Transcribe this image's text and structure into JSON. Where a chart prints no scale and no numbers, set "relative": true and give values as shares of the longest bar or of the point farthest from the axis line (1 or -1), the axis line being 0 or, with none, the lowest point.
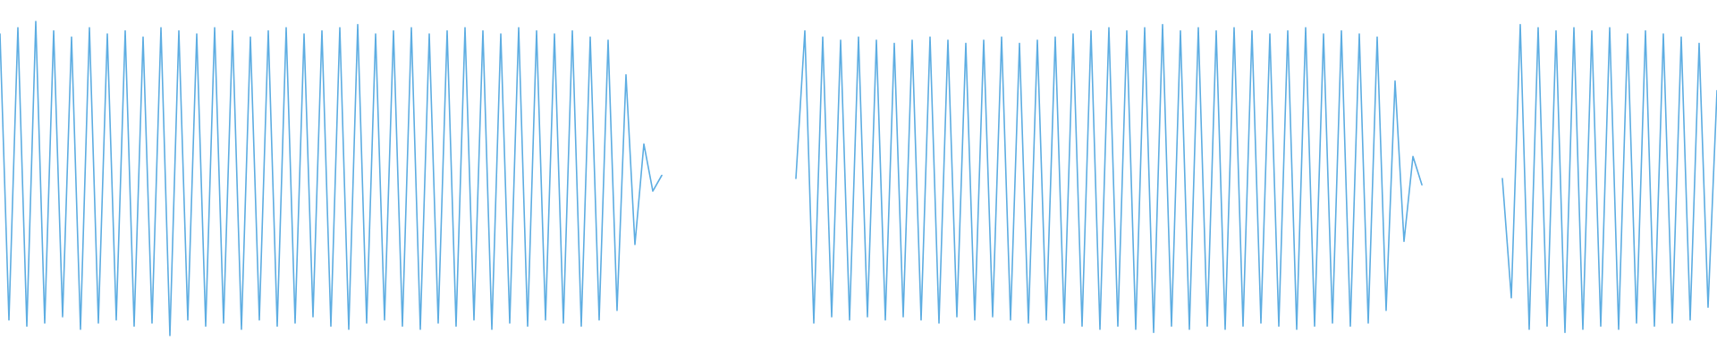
{
  "chart_data": {
    "type": "line",
    "relative": true,
    "categories": [
      null,
      null,
      null,
      null,
      null,
      null,
      null,
      null,
      null,
      null,
      null,
      null,
      null,
      null,
      null,
      null,
      null,
      null,
      null,
      null,
      null,
      null,
      null,
      null,
      null,
      null,
      null,
      null,
      null,
      null,
      null,
      null,
      null,
      null,
      null,
      null,
      null,
      null,
      null,
      null,
      null,
      null,
      null,
      null,
      null,
      null,
      null,
      null,
      null,
      null,
      null,
      null,
      null,
      null,
      null,
      null,
      null,
      null,
      null,
      null,
      null,
      null,
      null,
      null,
      null,
      null,
      null,
      null,
      null,
      null,
      null,
      null,
      null,
      null,
      null,
      null,
      null,
      null,
      null,
      null,
      null,
      null,
      null,
      null,
      null,
      null,
      null,
      null,
      null,
      null,
      null,
      null,
      null,
      null,
      null,
      null,
      null,
      null,
      null,
      null,
      null,
      null,
      null,
      null,
      null,
      null,
      null,
      null,
      null,
      null,
      null,
      null,
      null,
      null,
      null,
      null,
      null,
      null,
      null,
      null,
      null,
      null,
      null,
      null,
      null,
      null,
      null,
      null,
      null,
      null,
      null,
      null,
      null,
      null,
      null,
      null,
      null,
      null,
      null,
      null,
      null,
      null,
      null,
      null,
      null,
      null,
      null,
      null,
      null,
      null,
      null,
      null,
      null,
      null,
      null,
      null,
      null,
      null,
      null,
      null,
      null,
      null,
      null,
      null,
      null,
      null,
      null,
      null,
      null,
      null,
      null,
      null,
      null,
      null,
      null,
      null,
      null,
      null,
      null,
      null,
      null,
      null,
      null,
      null,
      null,
      null,
      null,
      null,
      null,
      null,
      null,
      null,
      null
    ],
    "series": [
      {
        "color": "#5dade2",
        "values": [
          0.96,
          0.05,
          0.98,
          0.03,
          1.0,
          0.04,
          0.97,
          0.06,
          0.95,
          0.02,
          0.98,
          0.04,
          0.96,
          0.05,
          0.97,
          0.03,
          0.95,
          0.04,
          0.98,
          0.0,
          0.97,
          0.05,
          0.96,
          0.03,
          0.98,
          0.04,
          0.97,
          0.02,
          0.95,
          0.05,
          0.97,
          0.03,
          0.98,
          0.04,
          0.96,
          0.06,
          0.97,
          0.03,
          0.98,
          0.02,
          0.99,
          0.04,
          0.96,
          0.05,
          0.97,
          0.03,
          0.98,
          0.02,
          0.96,
          0.04,
          0.97,
          0.03,
          0.98,
          0.05,
          0.97,
          0.02,
          0.96,
          0.04,
          0.98,
          0.03,
          0.97,
          0.05,
          0.96,
          0.04,
          0.97,
          0.03,
          0.95,
          0.05,
          0.94,
          0.08,
          0.83,
          0.29,
          0.61,
          0.46,
          0.51,
          null,
          null,
          null,
          null,
          null,
          null,
          null,
          null,
          null,
          null,
          null,
          null,
          null,
          null,
          null,
          null,
          null,
          null,
          null,
          null,
          null,
          null,
          null,
          null,
          null,
          null,
          null,
          null,
          null,
          null,
          null,
          null,
          null,
          null,
          null,
          null,
          null,
          null,
          null,
          null,
          null,
          null,
          null,
          null,
          null,
          null,
          null,
          null,
          null,
          null,
          null,
          null,
          null,
          null,
          null,
          null,
          null,
          null,
          null,
          null,
          null,
          null,
          null,
          null,
          null,
          null,
          null,
          null,
          null,
          null,
          null,
          null,
          null,
          null,
          null,
          null,
          null,
          null,
          null,
          null,
          null,
          null,
          null,
          null,
          null,
          null,
          null,
          null,
          null,
          null,
          null,
          null,
          null,
          null,
          null,
          null,
          null,
          null,
          null,
          null,
          null,
          null,
          null,
          null,
          null,
          null,
          null,
          null,
          null,
          null,
          null,
          null,
          null,
          null,
          null,
          null,
          null,
          null
        ]
      },
      {
        "color": "#5dade2",
        "values": [
          null,
          null,
          null,
          null,
          null,
          null,
          null,
          null,
          null,
          null,
          null,
          null,
          null,
          null,
          null,
          null,
          null,
          null,
          null,
          null,
          null,
          null,
          null,
          null,
          null,
          null,
          null,
          null,
          null,
          null,
          null,
          null,
          null,
          null,
          null,
          null,
          null,
          null,
          null,
          null,
          null,
          null,
          null,
          null,
          null,
          null,
          null,
          null,
          null,
          null,
          null,
          null,
          null,
          null,
          null,
          null,
          null,
          null,
          null,
          null,
          null,
          null,
          null,
          null,
          null,
          null,
          null,
          null,
          null,
          null,
          null,
          null,
          null,
          null,
          null,
          null,
          null,
          null,
          null,
          null,
          null,
          null,
          null,
          null,
          null,
          null,
          null,
          null,
          null,
          0.5,
          0.97,
          0.04,
          0.95,
          0.06,
          0.94,
          0.05,
          0.95,
          0.06,
          0.94,
          0.05,
          0.93,
          0.06,
          0.94,
          0.05,
          0.95,
          0.04,
          0.94,
          0.06,
          0.93,
          0.05,
          0.94,
          0.06,
          0.95,
          0.05,
          0.93,
          0.04,
          0.94,
          0.05,
          0.95,
          0.04,
          0.96,
          0.03,
          0.97,
          0.02,
          0.98,
          0.03,
          0.97,
          0.02,
          0.98,
          0.01,
          0.99,
          0.03,
          0.97,
          0.02,
          0.98,
          0.03,
          0.97,
          0.02,
          0.98,
          0.03,
          0.97,
          0.04,
          0.96,
          0.03,
          0.97,
          0.02,
          0.98,
          0.03,
          0.96,
          0.04,
          0.97,
          0.03,
          0.96,
          0.04,
          0.95,
          0.08,
          0.81,
          0.3,
          0.57,
          0.48,
          null,
          null,
          null,
          null,
          null,
          null,
          null,
          null,
          null,
          null,
          null,
          null,
          null,
          null,
          null,
          null,
          null,
          null,
          null,
          null,
          null,
          null,
          null,
          null,
          null,
          null,
          null,
          null,
          null,
          null,
          null,
          null,
          null
        ]
      },
      {
        "color": "#5dade2",
        "values": [
          null,
          null,
          null,
          null,
          null,
          null,
          null,
          null,
          null,
          null,
          null,
          null,
          null,
          null,
          null,
          null,
          null,
          null,
          null,
          null,
          null,
          null,
          null,
          null,
          null,
          null,
          null,
          null,
          null,
          null,
          null,
          null,
          null,
          null,
          null,
          null,
          null,
          null,
          null,
          null,
          null,
          null,
          null,
          null,
          null,
          null,
          null,
          null,
          null,
          null,
          null,
          null,
          null,
          null,
          null,
          null,
          null,
          null,
          null,
          null,
          null,
          null,
          null,
          null,
          null,
          null,
          null,
          null,
          null,
          null,
          null,
          null,
          null,
          null,
          null,
          null,
          null,
          null,
          null,
          null,
          null,
          null,
          null,
          null,
          null,
          null,
          null,
          null,
          null,
          null,
          null,
          null,
          null,
          null,
          null,
          null,
          null,
          null,
          null,
          null,
          null,
          null,
          null,
          null,
          null,
          null,
          null,
          null,
          null,
          null,
          null,
          null,
          null,
          null,
          null,
          null,
          null,
          null,
          null,
          null,
          null,
          null,
          null,
          null,
          null,
          null,
          null,
          null,
          null,
          null,
          null,
          null,
          null,
          null,
          null,
          null,
          null,
          null,
          null,
          null,
          null,
          null,
          null,
          null,
          null,
          null,
          null,
          null,
          null,
          null,
          null,
          null,
          null,
          null,
          null,
          null,
          null,
          null,
          null,
          null,
          null,
          null,
          null,
          null,
          null,
          null,
          null,
          null,
          0.5,
          0.12,
          0.99,
          0.02,
          0.98,
          0.03,
          0.97,
          0.01,
          0.98,
          0.02,
          0.97,
          0.03,
          0.98,
          0.02,
          0.96,
          0.04,
          0.97,
          0.03,
          0.96,
          0.04,
          0.95,
          0.05,
          0.93,
          0.09,
          0.78
        ]
      }
    ]
  }
}
